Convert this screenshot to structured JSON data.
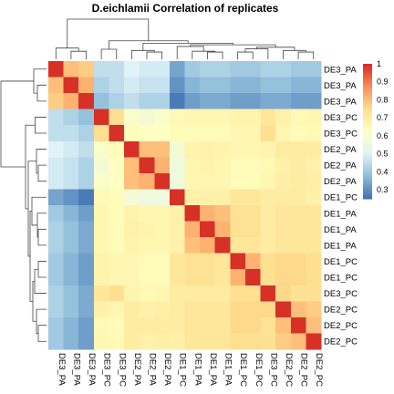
{
  "chart_data": {
    "type": "heatmap",
    "title": "D.eichlamii Correlation of replicates",
    "row_labels": [
      "DE3_PA",
      "DE3_PA",
      "DE3_PA",
      "DE3_PC",
      "DE3_PC",
      "DE2_PA",
      "DE2_PA",
      "DE2_PA",
      "DE1_PC",
      "DE1_PA",
      "DE1_PA",
      "DE1_PA",
      "DE1_PC",
      "DE1_PC",
      "DE3_PC",
      "DE2_PC",
      "DE2_PC",
      "DE2_PC"
    ],
    "col_labels": [
      "DE3_PA",
      "DE3_PA",
      "DE3_PA",
      "DE3_PC",
      "DE3_PC",
      "DE2_PA",
      "DE2_PA",
      "DE2_PA",
      "DE1_PC",
      "DE1_PA",
      "DE1_PA",
      "DE1_PA",
      "DE1_PC",
      "DE1_PC",
      "DE3_PC",
      "DE2_PC",
      "DE2_PC",
      "DE2_PC"
    ],
    "values": [
      [
        1.0,
        0.8,
        0.78,
        0.45,
        0.45,
        0.5,
        0.48,
        0.48,
        0.33,
        0.4,
        0.42,
        0.42,
        0.4,
        0.4,
        0.42,
        0.42,
        0.4,
        0.4
      ],
      [
        0.8,
        1.0,
        0.82,
        0.42,
        0.45,
        0.48,
        0.46,
        0.46,
        0.3,
        0.36,
        0.38,
        0.38,
        0.36,
        0.36,
        0.38,
        0.38,
        0.36,
        0.36
      ],
      [
        0.78,
        0.82,
        1.0,
        0.38,
        0.42,
        0.45,
        0.42,
        0.42,
        0.26,
        0.32,
        0.34,
        0.34,
        0.32,
        0.32,
        0.34,
        0.34,
        0.32,
        0.32
      ],
      [
        0.45,
        0.42,
        0.38,
        1.0,
        0.75,
        0.6,
        0.58,
        0.6,
        0.65,
        0.66,
        0.66,
        0.66,
        0.67,
        0.67,
        0.72,
        0.68,
        0.65,
        0.66
      ],
      [
        0.45,
        0.45,
        0.42,
        0.75,
        1.0,
        0.64,
        0.62,
        0.62,
        0.64,
        0.64,
        0.64,
        0.64,
        0.66,
        0.66,
        0.75,
        0.66,
        0.64,
        0.65
      ],
      [
        0.5,
        0.48,
        0.45,
        0.6,
        0.64,
        1.0,
        0.8,
        0.8,
        0.58,
        0.67,
        0.68,
        0.67,
        0.66,
        0.66,
        0.67,
        0.7,
        0.7,
        0.7
      ],
      [
        0.48,
        0.46,
        0.42,
        0.58,
        0.62,
        0.8,
        1.0,
        0.82,
        0.56,
        0.66,
        0.67,
        0.66,
        0.64,
        0.64,
        0.65,
        0.68,
        0.7,
        0.68
      ],
      [
        0.48,
        0.46,
        0.42,
        0.6,
        0.62,
        0.8,
        0.82,
        1.0,
        0.56,
        0.66,
        0.66,
        0.66,
        0.64,
        0.64,
        0.66,
        0.69,
        0.7,
        0.69
      ],
      [
        0.33,
        0.3,
        0.26,
        0.65,
        0.64,
        0.58,
        0.56,
        0.56,
        1.0,
        0.68,
        0.68,
        0.68,
        0.72,
        0.72,
        0.7,
        0.7,
        0.7,
        0.68
      ],
      [
        0.4,
        0.36,
        0.32,
        0.66,
        0.64,
        0.67,
        0.66,
        0.66,
        0.68,
        1.0,
        0.82,
        0.8,
        0.74,
        0.74,
        0.7,
        0.72,
        0.72,
        0.72
      ],
      [
        0.42,
        0.38,
        0.34,
        0.66,
        0.64,
        0.68,
        0.67,
        0.66,
        0.68,
        0.82,
        1.0,
        0.82,
        0.74,
        0.74,
        0.7,
        0.72,
        0.72,
        0.72
      ],
      [
        0.42,
        0.38,
        0.34,
        0.66,
        0.64,
        0.67,
        0.66,
        0.66,
        0.68,
        0.8,
        0.82,
        1.0,
        0.72,
        0.72,
        0.7,
        0.72,
        0.72,
        0.72
      ],
      [
        0.4,
        0.36,
        0.32,
        0.67,
        0.66,
        0.66,
        0.64,
        0.64,
        0.72,
        0.74,
        0.74,
        0.72,
        1.0,
        0.82,
        0.75,
        0.76,
        0.76,
        0.75
      ],
      [
        0.4,
        0.36,
        0.32,
        0.67,
        0.66,
        0.66,
        0.64,
        0.64,
        0.72,
        0.74,
        0.74,
        0.72,
        0.82,
        1.0,
        0.75,
        0.76,
        0.76,
        0.75
      ],
      [
        0.42,
        0.38,
        0.34,
        0.72,
        0.75,
        0.67,
        0.65,
        0.66,
        0.7,
        0.7,
        0.7,
        0.7,
        0.75,
        0.75,
        1.0,
        0.76,
        0.74,
        0.74
      ],
      [
        0.42,
        0.38,
        0.34,
        0.68,
        0.66,
        0.7,
        0.68,
        0.69,
        0.7,
        0.72,
        0.72,
        0.72,
        0.76,
        0.76,
        0.76,
        1.0,
        0.8,
        0.78
      ],
      [
        0.4,
        0.36,
        0.32,
        0.65,
        0.64,
        0.7,
        0.7,
        0.7,
        0.7,
        0.72,
        0.72,
        0.72,
        0.76,
        0.76,
        0.74,
        0.8,
        1.0,
        0.8
      ],
      [
        0.4,
        0.36,
        0.32,
        0.66,
        0.65,
        0.7,
        0.68,
        0.69,
        0.68,
        0.72,
        0.72,
        0.72,
        0.75,
        0.75,
        0.74,
        0.78,
        0.8,
        1.0
      ]
    ],
    "colorbar": {
      "ticks": [
        "1",
        "0.9",
        "0.8",
        "0.7",
        "0.6",
        "0.5",
        "0.4",
        "0.3"
      ],
      "range": [
        0.25,
        1.0
      ],
      "colors": [
        "#4575b4",
        "#91bfdb",
        "#e0f3f8",
        "#ffffbf",
        "#fee090",
        "#fc8d59",
        "#d73027"
      ]
    },
    "dendrogram_rows": [
      [
        "DE3_PA",
        "DE3_PA",
        "DE3_PA"
      ],
      [
        "DE3_PC",
        "DE3_PC",
        "DE2_PA",
        "DE2_PA",
        "DE2_PA",
        "DE1_PC",
        "DE1_PA",
        "DE1_PA",
        "DE1_PA",
        "DE1_PC",
        "DE1_PC",
        "DE3_PC",
        "DE2_PC",
        "DE2_PC",
        "DE2_PC"
      ]
    ]
  }
}
